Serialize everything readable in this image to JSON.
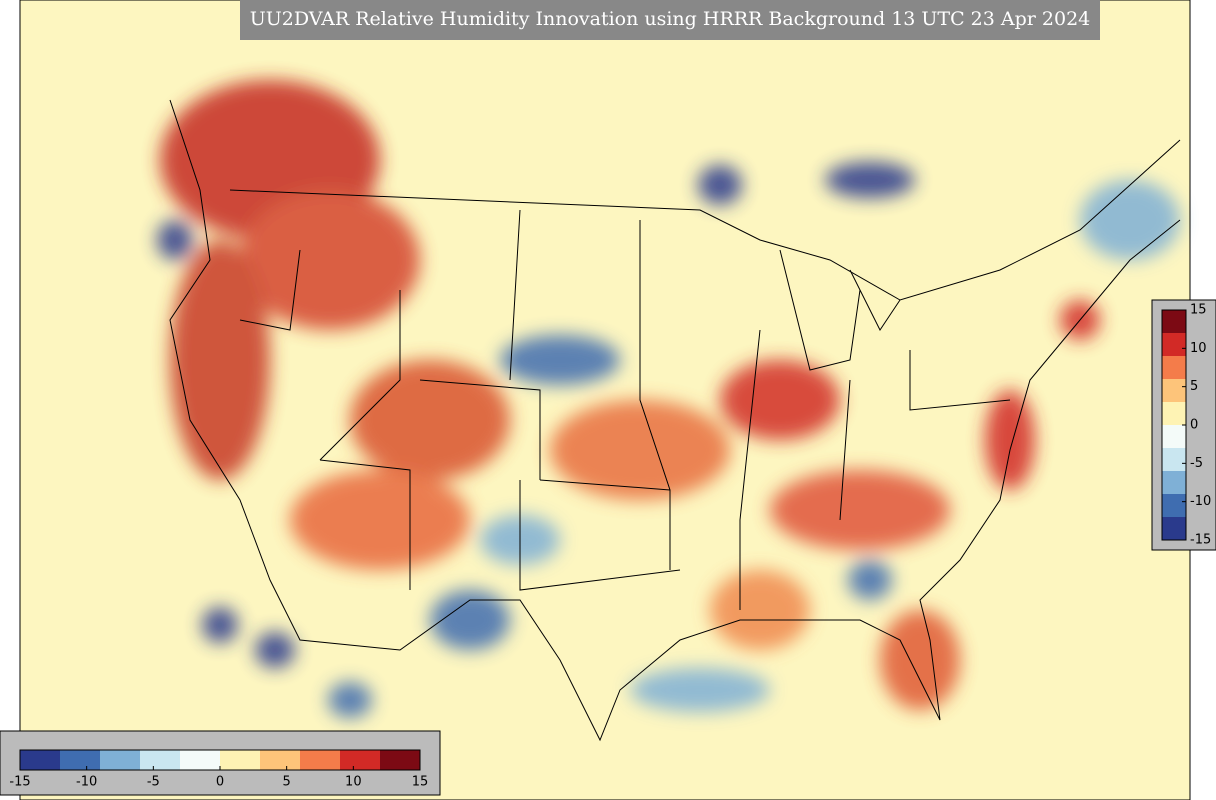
{
  "title": "UU2DVAR Relative Humidity Innovation using HRRR Background 13 UTC 23 Apr 2024",
  "colorbar": {
    "lim": [
      -15,
      15
    ],
    "ticks": [
      -15,
      -10,
      -5,
      0,
      5,
      10,
      15
    ],
    "colors": [
      "#2a3a8c",
      "#3f6db0",
      "#7fb0d6",
      "#c9e6f0",
      "#f4fbf9",
      "#fef3b4",
      "#fdc47a",
      "#f47c4a",
      "#d22a26",
      "#7c0a14"
    ]
  }
}
